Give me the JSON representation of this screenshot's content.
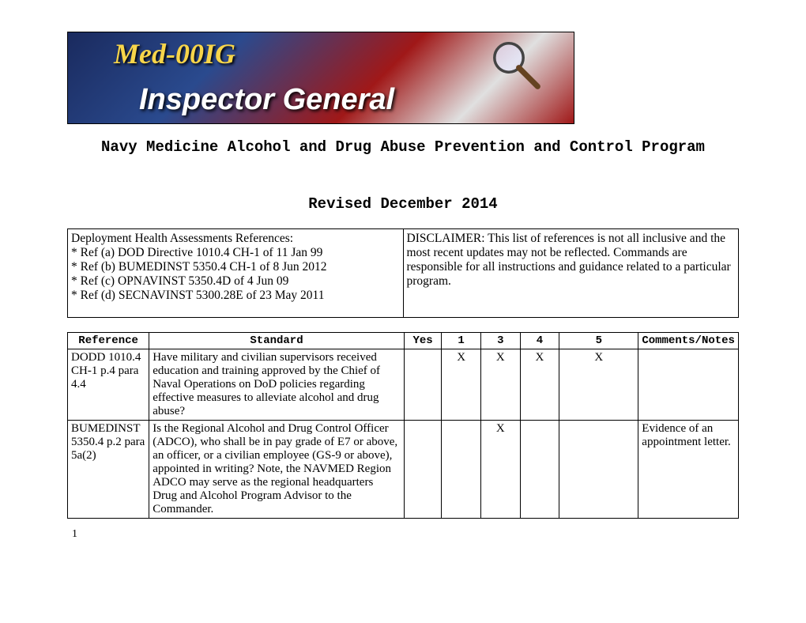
{
  "banner": {
    "line1": "Med-00IG",
    "line2": "Inspector General"
  },
  "title": "Navy Medicine Alcohol and Drug Abuse Prevention and Control Program",
  "subtitle": "Revised December 2014",
  "ref_table": {
    "left": "Deployment Health Assessments References:\n* Ref (a) DOD Directive 1010.4 CH-1 of 11 Jan 99\n* Ref (b) BUMEDINST 5350.4 CH-1 of 8 Jun 2012\n* Ref (c) OPNAVINST 5350.4D of 4 Jun 09\n* Ref (d) SECNAVINST 5300.28E of 23 May 2011",
    "right": "DISCLAIMER:  This list of references is not all inclusive and the most recent updates may not be reflected.  Commands are responsible for all instructions and guidance related to a particular program."
  },
  "main_table": {
    "headers": {
      "ref": "Reference",
      "std": "Standard",
      "yes": "Yes",
      "c1": "1",
      "c3": "3",
      "c4": "4",
      "c5": "5",
      "comment": "Comments/Notes"
    },
    "rows": [
      {
        "ref": "DODD 1010.4 CH-1 p.4 para 4.4",
        "std": "Have military and civilian supervisors received education and training approved by the Chief of Naval Operations on DoD policies regarding effective measures to alleviate alcohol and drug abuse?",
        "yes": "",
        "c1": "X",
        "c3": "X",
        "c4": "X",
        "c5": "X",
        "comment": ""
      },
      {
        "ref": "BUMEDINST 5350.4 p.2 para 5a(2)",
        "std": "Is the Regional Alcohol and Drug Control Officer (ADCO), who shall be in pay grade of E7 or above, an officer, or a civilian employee (GS-9 or above), appointed in writing? Note, the NAVMED Region ADCO may serve as the regional headquarters Drug and Alcohol Program Advisor to the Commander.",
        "yes": "",
        "c1": "",
        "c3": "X",
        "c4": "",
        "c5": "",
        "comment": "Evidence of an appointment letter."
      }
    ]
  },
  "page_number": "1"
}
